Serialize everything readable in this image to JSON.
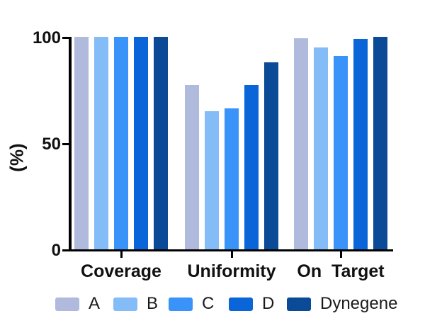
{
  "chart_data": {
    "type": "bar",
    "title": "",
    "categories": [
      "Coverage",
      "Uniformity",
      "On  Target"
    ],
    "series": [
      {
        "name": "A",
        "color": "#afbadd",
        "values": [
          100,
          77.5,
          99.5
        ]
      },
      {
        "name": "B",
        "color": "#84bcf8",
        "values": [
          100,
          65,
          95
        ]
      },
      {
        "name": "C",
        "color": "#3993f8",
        "values": [
          100,
          66.5,
          91
        ]
      },
      {
        "name": "D",
        "color": "#0a65d8",
        "values": [
          100,
          77.5,
          99
        ]
      },
      {
        "name": "Dynegene",
        "color": "#0a4a96",
        "values": [
          100,
          88,
          100
        ]
      }
    ],
    "xlabel": "",
    "ylabel": "(%)",
    "ylim": [
      0,
      100
    ],
    "yticks": [
      0,
      50,
      100
    ],
    "grid": false,
    "legend_position": "bottom",
    "axis_color": "#000000",
    "background_color": "#ffffff"
  }
}
